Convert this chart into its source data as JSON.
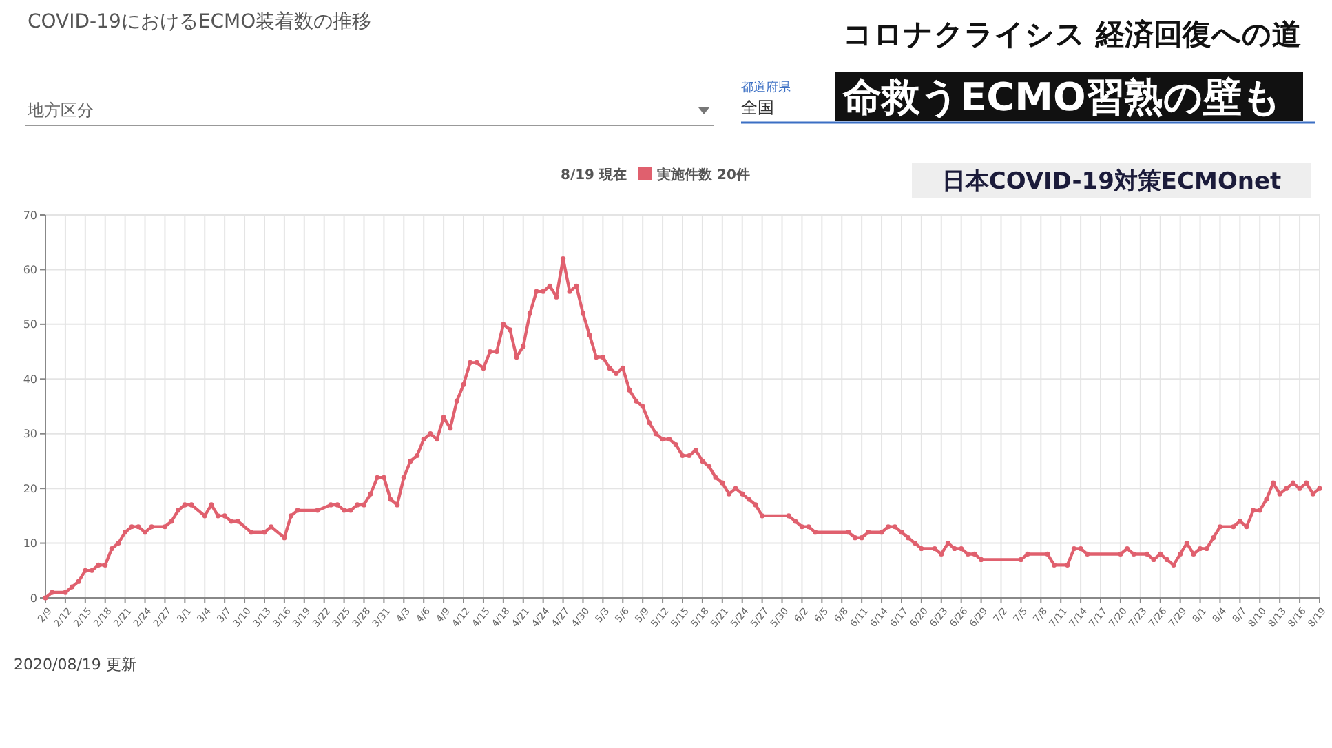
{
  "chart_data": {
    "type": "line",
    "title": "COVID-19におけるECMO装着数の推移",
    "legend_title": "8/19 現在",
    "annotations": [
      "地方区分",
      "都道府県",
      "全国",
      "日本COVID-19対策ECMOnet",
      "2020/08/19 更新",
      "コロナクライシス 経済回復への道",
      "命救うECMO習熟の壁も"
    ],
    "x": [
      "--02-09",
      "--02-10",
      "--02-12",
      "--02-13",
      "--02-14",
      "--02-15",
      "--02-16",
      "--02-17",
      "--02-18",
      "--02-19",
      "--02-20",
      "--02-21",
      "--02-22",
      "--02-23",
      "--02-24",
      "--02-25",
      "--02-27",
      "--02-28",
      "--02-29",
      "--03-01",
      "--03-02",
      "--03-04",
      "--03-05",
      "--03-06",
      "--03-07",
      "--03-08",
      "--03-09",
      "--03-11",
      "--03-13",
      "--03-14",
      "--03-16",
      "--03-17",
      "--03-18",
      "--03-21",
      "--03-23",
      "--03-24",
      "--03-25",
      "--03-26",
      "--03-27",
      "--03-28",
      "--03-29",
      "--03-30",
      "--03-31",
      "--04-01",
      "--04-02",
      "--04-03",
      "--04-04",
      "--04-05",
      "--04-06",
      "--04-07",
      "--04-08",
      "--04-09",
      "--04-10",
      "--04-11",
      "--04-12",
      "--04-13",
      "--04-14",
      "--04-15",
      "--04-16",
      "--04-17",
      "--04-18",
      "--04-19",
      "--04-20",
      "--04-21",
      "--04-22",
      "--04-23",
      "--04-24",
      "--04-25",
      "--04-26",
      "--04-27",
      "--04-28",
      "--04-29",
      "--04-30",
      "--05-01",
      "--05-02",
      "--05-03",
      "--05-04",
      "--05-05",
      "--05-06",
      "--05-07",
      "--05-08",
      "--05-09",
      "--05-10",
      "--05-11",
      "--05-12",
      "--05-13",
      "--05-14",
      "--05-15",
      "--05-16",
      "--05-17",
      "--05-18",
      "--05-19",
      "--05-20",
      "--05-21",
      "--05-22",
      "--05-23",
      "--05-24",
      "--05-25",
      "--05-26",
      "--05-27",
      "--05-31",
      "--06-01",
      "--06-02",
      "--06-03",
      "--06-04",
      "--06-09",
      "--06-10",
      "--06-11",
      "--06-12",
      "--06-14",
      "--06-15",
      "--06-16",
      "--06-17",
      "--06-18",
      "--06-19",
      "--06-20",
      "--06-22",
      "--06-23",
      "--06-24",
      "--06-25",
      "--06-26",
      "--06-27",
      "--06-28",
      "--06-29",
      "--07-05",
      "--07-06",
      "--07-09",
      "--07-10",
      "--07-12",
      "--07-13",
      "--07-14",
      "--07-15",
      "--07-20",
      "--07-21",
      "--07-22",
      "--07-24",
      "--07-25",
      "--07-26",
      "--07-27",
      "--07-28",
      "--07-29",
      "--07-30",
      "--07-31",
      "--08-01",
      "--08-02",
      "--08-03",
      "--08-04",
      "--08-06",
      "--08-07",
      "--08-08",
      "--08-09",
      "--08-10",
      "--08-11",
      "--08-12",
      "--08-13",
      "--08-14",
      "--08-15",
      "--08-16",
      "--08-17",
      "--08-18",
      "--08-19"
    ],
    "series": [
      {
        "name": "実施件数 20件",
        "color": "#e0606e",
        "values": [
          0,
          1,
          1,
          2,
          3,
          5,
          5,
          6,
          6,
          9,
          10,
          12,
          13,
          13,
          12,
          13,
          13,
          14,
          16,
          17,
          17,
          15,
          17,
          15,
          15,
          14,
          14,
          12,
          12,
          13,
          11,
          15,
          16,
          16,
          17,
          17,
          16,
          16,
          17,
          17,
          19,
          22,
          22,
          18,
          17,
          22,
          25,
          26,
          29,
          30,
          29,
          33,
          31,
          36,
          39,
          43,
          43,
          42,
          45,
          45,
          50,
          49,
          44,
          46,
          52,
          56,
          56,
          57,
          55,
          62,
          56,
          57,
          52,
          48,
          44,
          44,
          42,
          41,
          42,
          38,
          36,
          35,
          32,
          30,
          29,
          29,
          28,
          26,
          26,
          27,
          25,
          24,
          22,
          21,
          19,
          20,
          19,
          18,
          17,
          15,
          15,
          14,
          13,
          13,
          12,
          12,
          11,
          11,
          12,
          12,
          13,
          13,
          12,
          11,
          10,
          9,
          9,
          8,
          10,
          9,
          9,
          8,
          8,
          7,
          7,
          8,
          8,
          6,
          6,
          9,
          9,
          8,
          8,
          9,
          8,
          8,
          7,
          8,
          7,
          6,
          8,
          10,
          8,
          9,
          9,
          11,
          13,
          13,
          14,
          13,
          16,
          16,
          18,
          21,
          19,
          20,
          21,
          20,
          21,
          19,
          20
        ]
      }
    ],
    "xlim": [
      "--02-09",
      "--08-19"
    ],
    "xticks": [
      {
        "value": "--02-09",
        "label": "2/9"
      },
      {
        "value": "--02-12",
        "label": "2/12"
      },
      {
        "value": "--02-15",
        "label": "2/15"
      },
      {
        "value": "--02-18",
        "label": "2/18"
      },
      {
        "value": "--02-21",
        "label": "2/21"
      },
      {
        "value": "--02-24",
        "label": "2/24"
      },
      {
        "value": "--02-27",
        "label": "2/27"
      },
      {
        "value": "--03-01",
        "label": "3/1"
      },
      {
        "value": "--03-04",
        "label": "3/4"
      },
      {
        "value": "--03-07",
        "label": "3/7"
      },
      {
        "value": "--03-10",
        "label": "3/10"
      },
      {
        "value": "--03-13",
        "label": "3/13"
      },
      {
        "value": "--03-16",
        "label": "3/16"
      },
      {
        "value": "--03-19",
        "label": "3/19"
      },
      {
        "value": "--03-22",
        "label": "3/22"
      },
      {
        "value": "--03-25",
        "label": "3/25"
      },
      {
        "value": "--03-28",
        "label": "3/28"
      },
      {
        "value": "--03-31",
        "label": "3/31"
      },
      {
        "value": "--04-03",
        "label": "4/3"
      },
      {
        "value": "--04-06",
        "label": "4/6"
      },
      {
        "value": "--04-09",
        "label": "4/9"
      },
      {
        "value": "--04-12",
        "label": "4/12"
      },
      {
        "value": "--04-15",
        "label": "4/15"
      },
      {
        "value": "--04-18",
        "label": "4/18"
      },
      {
        "value": "--04-21",
        "label": "4/21"
      },
      {
        "value": "--04-24",
        "label": "4/24"
      },
      {
        "value": "--04-27",
        "label": "4/27"
      },
      {
        "value": "--04-30",
        "label": "4/30"
      },
      {
        "value": "--05-03",
        "label": "5/3"
      },
      {
        "value": "--05-06",
        "label": "5/6"
      },
      {
        "value": "--05-09",
        "label": "5/9"
      },
      {
        "value": "--05-12",
        "label": "5/12"
      },
      {
        "value": "--05-15",
        "label": "5/15"
      },
      {
        "value": "--05-18",
        "label": "5/18"
      },
      {
        "value": "--05-21",
        "label": "5/21"
      },
      {
        "value": "--05-24",
        "label": "5/24"
      },
      {
        "value": "--05-27",
        "label": "5/27"
      },
      {
        "value": "--05-30",
        "label": "5/30"
      },
      {
        "value": "--06-02",
        "label": "6/2"
      },
      {
        "value": "--06-05",
        "label": "6/5"
      },
      {
        "value": "--06-08",
        "label": "6/8"
      },
      {
        "value": "--06-11",
        "label": "6/11"
      },
      {
        "value": "--06-14",
        "label": "6/14"
      },
      {
        "value": "--06-17",
        "label": "6/17"
      },
      {
        "value": "--06-20",
        "label": "6/20"
      },
      {
        "value": "--06-23",
        "label": "6/23"
      },
      {
        "value": "--06-26",
        "label": "6/26"
      },
      {
        "value": "--06-29",
        "label": "6/29"
      },
      {
        "value": "--07-02",
        "label": "7/2"
      },
      {
        "value": "--07-05",
        "label": "7/5"
      },
      {
        "value": "--07-08",
        "label": "7/8"
      },
      {
        "value": "--07-11",
        "label": "7/11"
      },
      {
        "value": "--07-14",
        "label": "7/14"
      },
      {
        "value": "--07-17",
        "label": "7/17"
      },
      {
        "value": "--07-20",
        "label": "7/20"
      },
      {
        "value": "--07-23",
        "label": "7/23"
      },
      {
        "value": "--07-26",
        "label": "7/26"
      },
      {
        "value": "--07-29",
        "label": "7/29"
      },
      {
        "value": "--08-01",
        "label": "8/1"
      },
      {
        "value": "--08-04",
        "label": "8/4"
      },
      {
        "value": "--08-07",
        "label": "8/7"
      },
      {
        "value": "--08-10",
        "label": "8/10"
      },
      {
        "value": "--08-13",
        "label": "8/13"
      },
      {
        "value": "--08-16",
        "label": "8/16"
      },
      {
        "value": "--08-19",
        "label": "8/19"
      }
    ],
    "ylim": [
      0,
      70
    ],
    "yticks": [
      0,
      10,
      20,
      30,
      40,
      50,
      60,
      70
    ],
    "grid": true,
    "legend": "top",
    "marker": "circle",
    "line_style": "solid"
  }
}
